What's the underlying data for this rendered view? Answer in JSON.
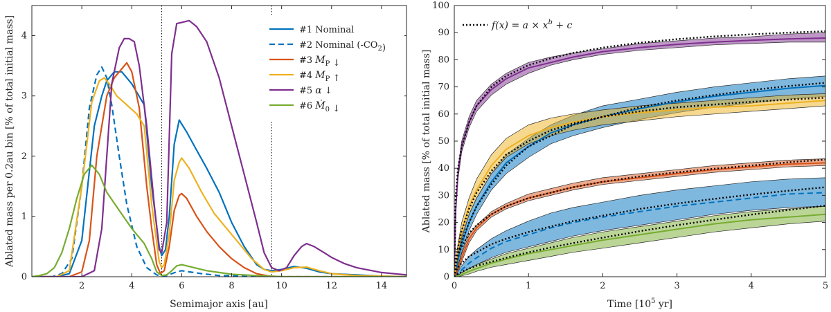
{
  "chart_data": [
    {
      "type": "line",
      "xlabel": "Semimajor axis [au]",
      "ylabel": "Ablated mass per 0.2au bin [% of total initial mass]",
      "xlim": [
        0,
        15
      ],
      "ylim": [
        0,
        4.5
      ],
      "xticks": [
        2,
        4,
        6,
        8,
        10,
        12,
        14
      ],
      "xtick_labels": [
        "2",
        "4",
        "6",
        "8",
        "10",
        "12",
        "14"
      ],
      "yticks": [
        0,
        1,
        2,
        3,
        4
      ],
      "ytick_labels": [
        "0",
        "1",
        "2",
        "3",
        "4"
      ],
      "vlines": [
        5.2,
        9.6
      ],
      "legend_position": "top-right",
      "series": [
        {
          "name": "#1 Nominal",
          "color": "#0072BD",
          "dash": "solid",
          "x": [
            0,
            1.0,
            1.5,
            2.0,
            2.5,
            2.8,
            3.0,
            3.3,
            3.6,
            4.0,
            4.5,
            4.8,
            5.1,
            5.2,
            5.35,
            5.5,
            5.7,
            5.9,
            6.2,
            6.6,
            7.0,
            7.5,
            8.0,
            8.5,
            9.0,
            9.3,
            9.6,
            10.0,
            10.5,
            11.0,
            11.5,
            12.0,
            13.0,
            14.0,
            15.0
          ],
          "y": [
            0,
            0,
            0.05,
            0.6,
            2.5,
            3.0,
            3.25,
            3.4,
            3.4,
            3.2,
            2.85,
            1.5,
            0.5,
            0.35,
            0.45,
            1.0,
            2.2,
            2.6,
            2.4,
            2.1,
            1.8,
            1.4,
            0.9,
            0.5,
            0.2,
            0.12,
            0.1,
            0.12,
            0.17,
            0.14,
            0.08,
            0.05,
            0.03,
            0.01,
            0
          ]
        },
        {
          "name": "#2 Nominal (-CO₂)",
          "color": "#0072BD",
          "dash": "dashed",
          "x": [
            0,
            0.8,
            1.2,
            1.6,
            2.0,
            2.3,
            2.6,
            2.8,
            3.0,
            3.2,
            3.5,
            3.8,
            4.2,
            4.6,
            5.0,
            5.2,
            5.4,
            5.6,
            5.8,
            6.0,
            6.3,
            6.8,
            7.5,
            8.5,
            9.5,
            10.5,
            12.0,
            15.0
          ],
          "y": [
            0,
            0,
            0.05,
            0.3,
            1.5,
            2.8,
            3.35,
            3.48,
            3.3,
            2.85,
            2.0,
            1.2,
            0.5,
            0.15,
            0.03,
            0.01,
            0.02,
            0.05,
            0.08,
            0.1,
            0.08,
            0.05,
            0.02,
            0.01,
            0,
            0,
            0,
            0
          ]
        },
        {
          "name": "#3 Mp↓",
          "color": "#D95319",
          "dash": "solid",
          "x": [
            0,
            1.5,
            2.0,
            2.3,
            2.6,
            3.0,
            3.3,
            3.6,
            3.8,
            4.0,
            4.3,
            4.6,
            4.8,
            5.0,
            5.15,
            5.3,
            5.5,
            5.7,
            5.9,
            6.0,
            6.2,
            6.6,
            7.0,
            7.5,
            8.0,
            8.5,
            9.0,
            9.5,
            10.0,
            11.0,
            12.0,
            15.0
          ],
          "y": [
            0,
            0,
            0.08,
            0.6,
            2.0,
            3.0,
            3.3,
            3.45,
            3.55,
            3.4,
            2.8,
            1.5,
            0.8,
            0.2,
            0.05,
            0.1,
            0.5,
            1.1,
            1.35,
            1.38,
            1.3,
            1.0,
            0.75,
            0.5,
            0.3,
            0.15,
            0.05,
            0.01,
            0,
            0,
            0,
            0
          ]
        },
        {
          "name": "#4 Mp↑",
          "color": "#EDB120",
          "dash": "solid",
          "x": [
            0,
            1.0,
            1.5,
            2.0,
            2.4,
            2.7,
            2.9,
            3.1,
            3.4,
            3.8,
            4.2,
            4.5,
            4.8,
            5.1,
            5.2,
            5.3,
            5.5,
            5.7,
            5.9,
            6.0,
            6.3,
            6.8,
            7.3,
            7.8,
            8.3,
            8.8,
            9.3,
            9.6,
            10.0,
            10.5,
            11.0,
            11.5,
            12.0,
            13.0,
            14.0,
            15.0
          ],
          "y": [
            0,
            0,
            0.1,
            1.5,
            2.9,
            3.25,
            3.3,
            3.2,
            3.0,
            2.85,
            2.7,
            2.5,
            1.2,
            0.25,
            0.15,
            0.2,
            0.7,
            1.6,
            1.9,
            1.97,
            1.8,
            1.4,
            1.05,
            0.8,
            0.55,
            0.3,
            0.12,
            0.08,
            0.1,
            0.15,
            0.16,
            0.1,
            0.05,
            0.02,
            0.01,
            0
          ]
        },
        {
          "name": "#5 α↓",
          "color": "#7E2F8E",
          "dash": "solid",
          "x": [
            0,
            2.0,
            2.5,
            2.8,
            3.0,
            3.2,
            3.5,
            3.7,
            3.9,
            4.1,
            4.3,
            4.6,
            4.9,
            5.1,
            5.2,
            5.4,
            5.6,
            5.8,
            6.0,
            6.3,
            6.6,
            7.0,
            7.5,
            8.0,
            8.5,
            9.0,
            9.3,
            9.6,
            9.9,
            10.2,
            10.5,
            10.8,
            11.0,
            11.3,
            11.7,
            12.0,
            12.5,
            13.0,
            14.0,
            15.0
          ],
          "y": [
            0,
            0,
            0.1,
            0.8,
            2.0,
            3.2,
            3.8,
            3.95,
            3.95,
            3.9,
            3.5,
            2.5,
            1.2,
            0.45,
            0.4,
            0.9,
            3.7,
            4.2,
            4.22,
            4.25,
            4.15,
            3.9,
            3.3,
            2.5,
            1.7,
            0.9,
            0.4,
            0.15,
            0.1,
            0.15,
            0.35,
            0.5,
            0.55,
            0.5,
            0.4,
            0.32,
            0.22,
            0.15,
            0.07,
            0.03
          ]
        },
        {
          "name": "#6 Ṁ0↓",
          "color": "#77AC30",
          "dash": "solid",
          "x": [
            0,
            0.3,
            0.6,
            0.9,
            1.2,
            1.5,
            1.8,
            2.1,
            2.4,
            2.7,
            3.0,
            3.5,
            4.0,
            4.5,
            4.8,
            5.0,
            5.2,
            5.4,
            5.6,
            5.8,
            6.0,
            6.5,
            7.0,
            7.5,
            8.0,
            9.0,
            10.0,
            11.0,
            15.0
          ],
          "y": [
            0,
            0.02,
            0.05,
            0.15,
            0.4,
            0.8,
            1.3,
            1.7,
            1.85,
            1.7,
            1.4,
            1.1,
            0.8,
            0.55,
            0.3,
            0.08,
            0.02,
            0.03,
            0.1,
            0.18,
            0.2,
            0.15,
            0.1,
            0.07,
            0.04,
            0.02,
            0,
            0,
            0
          ]
        }
      ],
      "legend_entries": [
        {
          "num": "#1",
          "text": "Nominal"
        },
        {
          "num": "#2",
          "text": "Nominal (-CO",
          "sub": "2",
          "tail": ")"
        },
        {
          "num": "#3",
          "math": "M",
          "sub": "P",
          "arrow": "↓"
        },
        {
          "num": "#4",
          "math": "M",
          "sub": "P",
          "arrow": "↑"
        },
        {
          "num": "#5",
          "math": "α",
          "arrow": "↓"
        },
        {
          "num": "#6",
          "math": "Ṁ",
          "sub": "0",
          "arrow": "↓"
        }
      ]
    },
    {
      "type": "line",
      "xlabel": "Time [10",
      "xlabel_sup": "5",
      "xlabel_tail": " yr]",
      "ylabel": "Ablated mass [% of total initial mass]",
      "xlim": [
        0,
        5
      ],
      "ylim": [
        0,
        100
      ],
      "xticks": [
        0,
        1,
        2,
        3,
        4,
        5
      ],
      "xtick_labels": [
        "0",
        "1",
        "2",
        "3",
        "4",
        "5"
      ],
      "yticks": [
        0,
        10,
        20,
        30,
        40,
        50,
        60,
        70,
        80,
        90,
        100
      ],
      "ytick_labels": [
        "0",
        "10",
        "20",
        "30",
        "40",
        "50",
        "60",
        "70",
        "80",
        "90",
        "100"
      ],
      "legend_position": "top-left",
      "legend": {
        "label": "f(x) = a × x",
        "sup": "b",
        "tail": " + c"
      },
      "x": [
        0,
        0.02,
        0.05,
        0.1,
        0.2,
        0.3,
        0.5,
        0.7,
        1.0,
        1.3,
        1.6,
        2.0,
        2.5,
        3.0,
        3.5,
        4.0,
        4.5,
        5.0
      ],
      "series": [
        {
          "name": "#5 α↓",
          "color": "#7E2F8E",
          "dash": "solid",
          "y": [
            0,
            25,
            38,
            48,
            57,
            63,
            69,
            73,
            77,
            79,
            81,
            83,
            84.5,
            85.7,
            86.5,
            87.2,
            87.7,
            88
          ],
          "lower": [
            0,
            23,
            36,
            46,
            55,
            61,
            67,
            71,
            75,
            78,
            80,
            82,
            83.5,
            84.5,
            85.5,
            86,
            86.5,
            86.5
          ],
          "upper": [
            0,
            27,
            40,
            50,
            59,
            65,
            71,
            75,
            79,
            81,
            82.5,
            84,
            86,
            87,
            88,
            88.5,
            89.5,
            90
          ],
          "fit": [
            0,
            30,
            40,
            48,
            57,
            63,
            70,
            74,
            78,
            80.5,
            82.5,
            84.5,
            86.3,
            87.6,
            88.6,
            89.4,
            90,
            90.5
          ]
        },
        {
          "name": "#1 Nominal",
          "color": "#0072BD",
          "dash": "solid",
          "y": [
            0,
            2,
            6,
            12,
            20,
            26,
            35,
            42,
            48,
            53,
            56,
            59,
            62,
            64.5,
            66.5,
            68,
            69.5,
            70.5
          ],
          "lower": [
            0,
            1,
            4,
            9,
            17,
            23,
            32,
            38,
            44,
            49,
            52,
            55,
            58,
            60.5,
            62.5,
            64,
            65.5,
            66.5
          ],
          "upper": [
            0,
            3,
            8,
            15,
            23,
            29,
            38,
            45,
            51,
            56,
            59.5,
            63,
            65.5,
            68,
            70,
            71.5,
            73,
            74
          ],
          "fit": [
            0,
            4,
            8,
            13,
            20,
            26,
            34,
            41,
            48,
            52,
            56,
            59,
            62.5,
            65,
            67,
            68.8,
            70.3,
            71.5
          ]
        },
        {
          "name": "#4 Mp↑",
          "color": "#EDB120",
          "dash": "solid",
          "y": [
            0,
            4,
            10,
            17,
            26,
            32,
            41,
            47,
            52,
            55,
            57,
            59,
            60.5,
            61.5,
            62.5,
            63,
            64,
            65
          ],
          "lower": [
            0,
            3,
            8,
            14,
            23,
            29,
            38,
            44,
            49,
            52,
            54,
            56,
            57.5,
            59,
            60,
            61,
            62,
            63
          ],
          "upper": [
            0,
            5,
            12,
            20,
            29,
            36,
            45,
            51,
            56,
            58.5,
            60,
            61.5,
            63,
            64,
            65,
            66,
            67,
            67.5
          ],
          "fit": [
            0,
            6,
            11,
            17,
            25,
            31,
            39,
            45,
            50,
            54,
            56.5,
            59,
            61,
            62.5,
            63.5,
            64.5,
            65.3,
            66
          ]
        },
        {
          "name": "#3 Mp↓",
          "color": "#D95319",
          "dash": "solid",
          "y": [
            0,
            1,
            3,
            7,
            14,
            18,
            23,
            26,
            29,
            31,
            33,
            35,
            36.5,
            38,
            39.5,
            40.5,
            41.5,
            42
          ],
          "lower": [
            0,
            0.5,
            2,
            5.5,
            12.5,
            17,
            22,
            25,
            28,
            30,
            32,
            34,
            35.5,
            37,
            38.5,
            39.5,
            40.5,
            41
          ],
          "upper": [
            0,
            1.5,
            4,
            8.5,
            15.5,
            19,
            24,
            27,
            30.5,
            32.5,
            34.5,
            36.5,
            38,
            39.5,
            41,
            42,
            43,
            43.5
          ],
          "fit": [
            0,
            5,
            8,
            11,
            16,
            19,
            23,
            26,
            29,
            31,
            33,
            35,
            37,
            38.5,
            39.8,
            41,
            42.2,
            43.2
          ]
        },
        {
          "name": "#2 Nominal (-CO₂)",
          "color": "#0072BD",
          "dash": "dashed",
          "y": [
            0,
            0.3,
            1,
            2.5,
            5,
            7,
            10.5,
            13,
            15.5,
            18,
            20,
            22,
            24,
            26,
            27.5,
            29,
            30.5,
            31
          ],
          "lower": [
            0,
            0.1,
            0.5,
            1.5,
            3,
            4.5,
            7,
            9,
            11,
            13,
            15,
            17,
            19,
            21,
            23,
            24.5,
            25.5,
            26
          ],
          "upper": [
            0,
            0.5,
            2,
            4,
            7.5,
            10,
            14,
            17,
            20.5,
            23.5,
            25.5,
            27.5,
            30,
            32,
            33.5,
            35,
            36,
            36.5
          ],
          "fit": [
            0,
            2,
            3.5,
            5,
            7.5,
            9,
            12,
            14,
            16.5,
            18.5,
            20.5,
            22.5,
            25,
            27,
            28.7,
            30.3,
            31.7,
            33
          ]
        },
        {
          "name": "#6 Ṁ0↓",
          "color": "#77AC30",
          "dash": "solid",
          "y": [
            0,
            0.1,
            0.3,
            0.8,
            2,
            3,
            5,
            6.5,
            8.5,
            10,
            11.5,
            13.5,
            15.5,
            17.5,
            19.5,
            21,
            22,
            23
          ],
          "lower": [
            0,
            0,
            0.1,
            0.3,
            1,
            2,
            3.5,
            4.5,
            6,
            7.5,
            9,
            10.5,
            12.5,
            14.5,
            16.5,
            18,
            19.5,
            20.5
          ],
          "upper": [
            0,
            0.2,
            0.6,
            1.4,
            3,
            4.5,
            6.5,
            8.5,
            10.5,
            12.5,
            14.5,
            16.5,
            18.5,
            20.5,
            22.5,
            24,
            25,
            26
          ],
          "fit": [
            0,
            0.5,
            1,
            1.8,
            3,
            4,
            5.5,
            7,
            9,
            10.8,
            12.4,
            14.4,
            16.8,
            19,
            21,
            22.9,
            24.6,
            26.2
          ]
        }
      ]
    }
  ]
}
